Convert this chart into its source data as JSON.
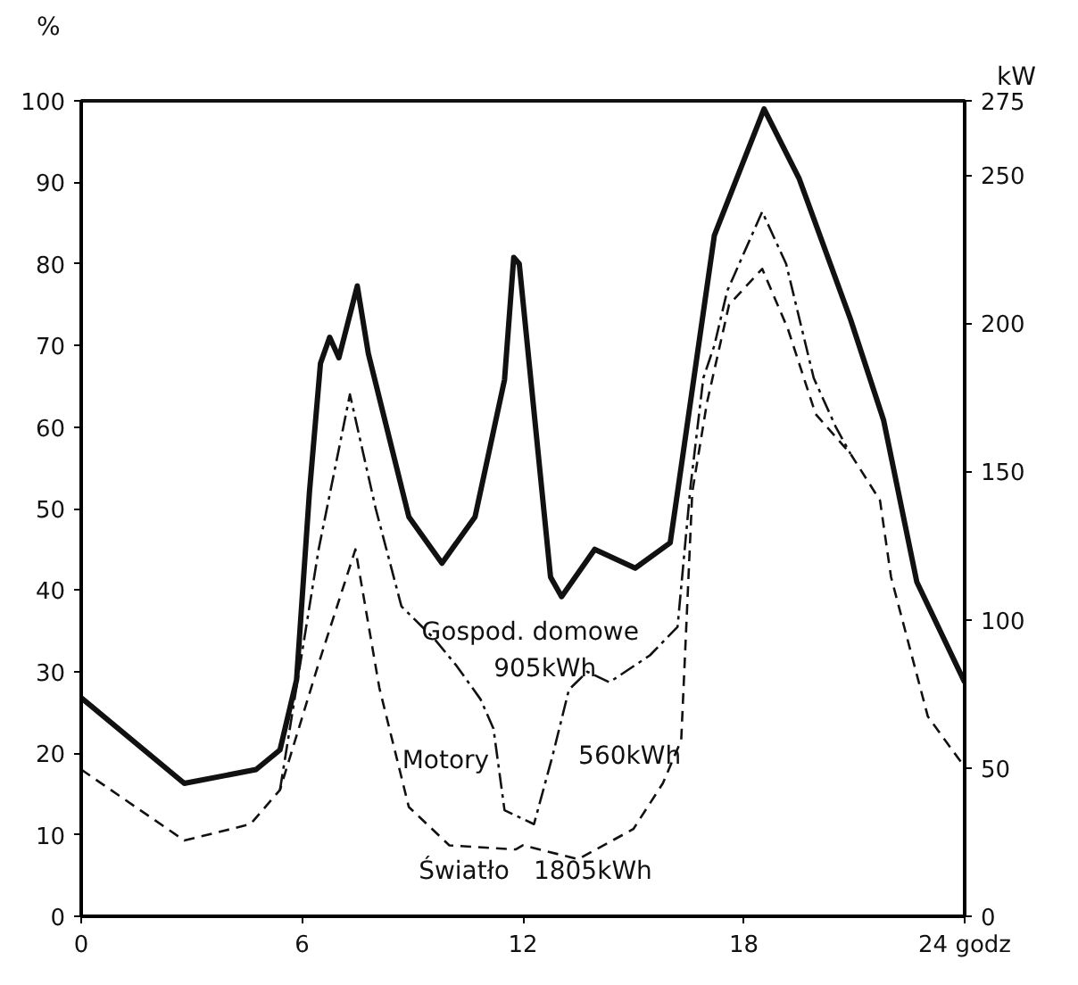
{
  "chart_data": {
    "type": "line",
    "x": [
      0,
      2.8,
      4.75,
      5.4,
      5.85,
      6.2,
      6.5,
      6.75,
      7,
      7.5,
      7.8,
      8.9,
      9.8,
      10.7,
      11.5,
      11.75,
      11.9,
      12.75,
      13.05,
      13.95,
      15.05,
      16,
      16.2,
      17.2,
      18.55,
      19.5,
      20.9,
      21.8,
      22.7,
      24
    ],
    "series": [
      {
        "color": "#111111",
        "line_style": "solid",
        "values": [
          26.8,
          16.3,
          18,
          20.4,
          29,
          52,
          67.8,
          71,
          68.5,
          77.3,
          69,
          49,
          43.3,
          49,
          65.8,
          80.8,
          80,
          41.6,
          39.2,
          45,
          42.7,
          45.8,
          52,
          83.5,
          99,
          90.5,
          73.2,
          60.8,
          41,
          28.7
        ]
      },
      {
        "color": "#111111",
        "line_style": "dashdot",
        "x": [
          5.4,
          6.45,
          7.3,
          8,
          8.7,
          9.6,
          10.2,
          10.85,
          11.2,
          11.5,
          12.3,
          12.8,
          13.25,
          13.75,
          14.35,
          15.45,
          16.2,
          16.55,
          16.9,
          17.2,
          17.55,
          18.5,
          19.15,
          19.9,
          20.5,
          20.9
        ],
        "values": [
          15.5,
          45,
          64,
          50,
          38,
          34,
          30.7,
          26.6,
          23,
          13,
          11.3,
          19.6,
          27.8,
          30,
          28.7,
          32,
          35.5,
          52.6,
          66,
          70,
          76.7,
          86.4,
          80,
          66,
          60,
          56.7
        ]
      },
      {
        "color": "#111111",
        "line_style": "dashed",
        "x": [
          0,
          2.8,
          4.6,
          5.4,
          6.45,
          7.45,
          8.1,
          8.9,
          10,
          11.8,
          12,
          13.5,
          15,
          15.8,
          16.3,
          16.6,
          17,
          17.6,
          18.5,
          19.2,
          19.95,
          20.9,
          21.7,
          22,
          23,
          24
        ],
        "values": [
          18,
          9.3,
          11.3,
          15.5,
          31,
          45,
          28,
          13.4,
          8.7,
          8.2,
          8.7,
          7,
          10.7,
          16.3,
          21.6,
          52,
          63,
          75,
          79.4,
          72,
          61.6,
          56.7,
          51,
          41.6,
          24.5,
          18.3
        ]
      }
    ],
    "xlim": [
      0,
      24
    ],
    "xticks": [
      0,
      6,
      12,
      18,
      {
        "value": 24,
        "label": "24 godz"
      }
    ],
    "ylim": [
      0,
      100
    ],
    "yticks": [
      0,
      10,
      20,
      30,
      40,
      50,
      60,
      70,
      80,
      90,
      100
    ],
    "y2lim": [
      0,
      275
    ],
    "y2ticks": [
      0,
      50,
      100,
      150,
      200,
      250,
      275
    ],
    "ylabel": "%",
    "y2label": "kW",
    "annotations": [
      "Gospod. domowe",
      "905kWh",
      "Motory",
      "560kWh",
      "Światło",
      "1805kWh"
    ],
    "grid": false
  }
}
